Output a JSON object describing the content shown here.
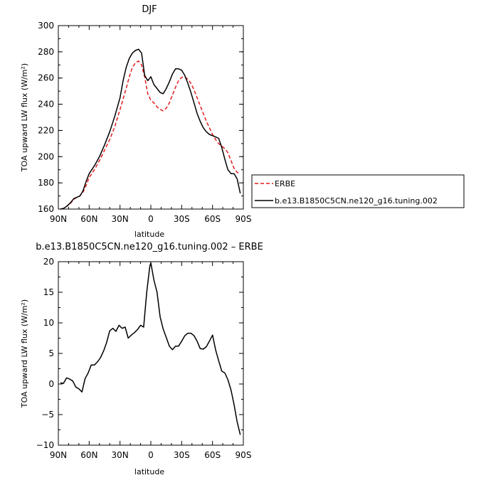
{
  "chart_data": [
    {
      "type": "line",
      "title": "DJF",
      "xlabel": "latitude",
      "ylabel": "TOA upward LW flux (W/m²)",
      "xlim": [
        90,
        -90
      ],
      "ylim": [
        160,
        300
      ],
      "xtick_values": [
        90,
        60,
        30,
        0,
        -30,
        -60,
        -90
      ],
      "xtick_labels": [
        "90N",
        "60N",
        "30N",
        "0",
        "30S",
        "60S",
        "90S"
      ],
      "ytick_values": [
        160,
        180,
        200,
        220,
        240,
        260,
        280,
        300
      ],
      "ytick_labels": [
        "160",
        "180",
        "200",
        "220",
        "240",
        "260",
        "280",
        "300"
      ],
      "legend_position": "right",
      "series": [
        {
          "name": "ERBE",
          "color": "#e31a1c",
          "dash": "dashed",
          "x": [
            88,
            85,
            82,
            78,
            75,
            72,
            69,
            66,
            63,
            60,
            55,
            50,
            45,
            40,
            35,
            30,
            27,
            24,
            21,
            18,
            15,
            12,
            9,
            6,
            3,
            0,
            -3,
            -6,
            -9,
            -12,
            -15,
            -18,
            -21,
            -24,
            -27,
            -30,
            -33,
            -36,
            -39,
            -42,
            -45,
            -48,
            -51,
            -54,
            -57,
            -60,
            -63,
            -66,
            -69,
            -72,
            -75,
            -78,
            -81,
            -84,
            -87
          ],
          "y": [
            160,
            160.5,
            162,
            164.5,
            167.5,
            169,
            170,
            173,
            178,
            184,
            190,
            197,
            205,
            213,
            223,
            236,
            244,
            252,
            261,
            268,
            271.5,
            273,
            270,
            261,
            248,
            243,
            241,
            238,
            236,
            235,
            237,
            241,
            247,
            253,
            258,
            260.5,
            261,
            259,
            256,
            251,
            245,
            239,
            233,
            227,
            222,
            217,
            213,
            210,
            208,
            206,
            203,
            197,
            191,
            188,
            187
          ]
        },
        {
          "name": "b.e13.B1850C5CN.ne120_g16.tuning.002",
          "color": "#000000",
          "dash": "solid",
          "x": [
            88,
            85,
            82,
            78,
            75,
            72,
            69,
            66,
            63,
            60,
            55,
            50,
            45,
            40,
            35,
            30,
            27,
            24,
            21,
            18,
            15,
            12,
            9,
            6,
            3,
            0,
            -3,
            -6,
            -9,
            -12,
            -15,
            -18,
            -21,
            -24,
            -27,
            -30,
            -33,
            -36,
            -39,
            -42,
            -45,
            -48,
            -51,
            -54,
            -57,
            -60,
            -63,
            -66,
            -69,
            -72,
            -75,
            -78,
            -81,
            -84,
            -87
          ],
          "y": [
            160,
            160.5,
            162,
            165,
            168,
            169,
            170,
            174,
            181,
            187,
            193,
            200,
            209,
            219,
            231,
            245,
            258,
            268,
            275,
            279,
            281,
            282,
            279,
            262,
            258,
            261,
            255,
            252,
            249,
            248,
            252,
            257,
            263,
            267,
            267,
            266,
            262,
            256,
            249,
            241,
            233,
            227,
            222,
            219,
            217,
            216,
            215,
            214,
            207,
            198,
            190,
            187,
            187,
            183,
            172
          ]
        }
      ]
    },
    {
      "type": "line",
      "title": "b.e13.B1850C5CN.ne120_g16.tuning.002 – ERBE",
      "xlabel": "latitude",
      "ylabel": "TOA upward LW flux (W/m²)",
      "xlim": [
        90,
        -90
      ],
      "ylim": [
        -10,
        20
      ],
      "xtick_values": [
        90,
        60,
        30,
        0,
        -30,
        -60,
        -90
      ],
      "xtick_labels": [
        "90N",
        "60N",
        "30N",
        "0",
        "30S",
        "60S",
        "90S"
      ],
      "ytick_values": [
        -10,
        -5,
        0,
        5,
        10,
        15,
        20
      ],
      "ytick_labels": [
        "−10",
        "−5",
        "0",
        "5",
        "10",
        "15",
        "20"
      ],
      "series": [
        {
          "color": "#000000",
          "dash": "solid",
          "x": [
            88,
            85,
            82,
            79,
            76,
            73,
            70,
            67,
            64,
            61,
            58,
            55,
            52,
            49,
            46,
            43,
            40,
            37,
            34,
            31,
            28,
            25,
            22,
            19,
            16,
            13,
            10,
            7,
            4,
            1,
            0,
            -3,
            -6,
            -9,
            -12,
            -15,
            -18,
            -21,
            -24,
            -27,
            -30,
            -33,
            -36,
            -39,
            -42,
            -45,
            -48,
            -51,
            -54,
            -57,
            -60,
            -63,
            -66,
            -69,
            -72,
            -75,
            -78,
            -81,
            -84,
            -87
          ],
          "y": [
            0.2,
            0.1,
            1.0,
            0.8,
            0.5,
            -0.5,
            -0.8,
            -1.3,
            0.9,
            1.8,
            3.1,
            3.1,
            3.6,
            4.3,
            5.4,
            6.8,
            8.7,
            9.1,
            8.6,
            9.6,
            9.1,
            9.3,
            7.5,
            8.0,
            8.4,
            8.9,
            9.6,
            9.3,
            15.0,
            19.3,
            19.8,
            17.0,
            15.0,
            11.0,
            9.0,
            7.6,
            6.2,
            5.6,
            6.2,
            6.2,
            7.0,
            7.9,
            8.3,
            8.3,
            7.9,
            7.0,
            5.8,
            5.7,
            6.1,
            7.0,
            8.0,
            5.6,
            3.8,
            2.1,
            1.8,
            0.7,
            -1.0,
            -3.4,
            -6.2,
            -8.3
          ]
        }
      ]
    }
  ]
}
